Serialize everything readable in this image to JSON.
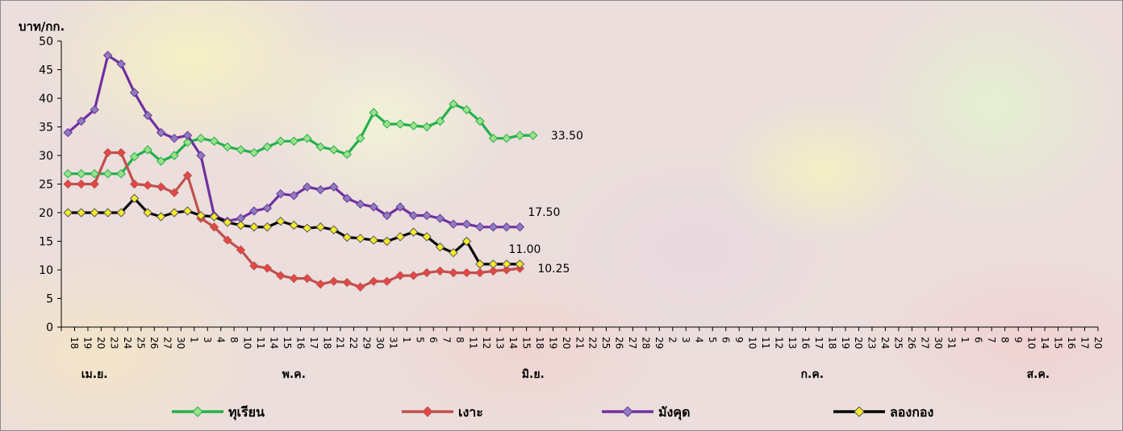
{
  "chart_data": {
    "type": "line",
    "ylabel": "บาท/กก.",
    "ylim": [
      0,
      50
    ],
    "yticks": [
      0,
      5,
      10,
      15,
      20,
      25,
      30,
      35,
      40,
      45,
      50
    ],
    "x_tick_labels": [
      "18",
      "19",
      "20",
      "23",
      "24",
      "25",
      "26",
      "27",
      "30",
      "1",
      "3",
      "4",
      "8",
      "10",
      "11",
      "14",
      "15",
      "16",
      "17",
      "18",
      "21",
      "22",
      "29",
      "30",
      "31",
      "1",
      "5",
      "6",
      "7",
      "8",
      "11",
      "12",
      "13",
      "14",
      "15",
      "18",
      "19",
      "20",
      "21",
      "22",
      "25",
      "26",
      "27",
      "28",
      "29",
      "2",
      "3",
      "4",
      "5",
      "6",
      "9",
      "10",
      "11",
      "12",
      "13",
      "16",
      "17",
      "18",
      "19",
      "20",
      "23",
      "24",
      "25",
      "26",
      "27",
      "30",
      "31",
      "1",
      "6",
      "7",
      "8",
      "9",
      "10",
      "14",
      "15",
      "16",
      "17",
      "20"
    ],
    "months": [
      {
        "label": "เม.ย.",
        "index": 2
      },
      {
        "label": "พ.ค.",
        "index": 17
      },
      {
        "label": "มิ.ย.",
        "index": 35
      },
      {
        "label": "ก.ค.",
        "index": 56
      },
      {
        "label": "ส.ค.",
        "index": 73
      }
    ],
    "grid": false,
    "legend_position": "bottom",
    "series": [
      {
        "name": "ทุเรียน",
        "color": "#22b04a",
        "marker_color": "#9be08a",
        "values": [
          26.8,
          26.8,
          26.8,
          26.8,
          26.8,
          29.8,
          31,
          29,
          30,
          32.3,
          33,
          32.5,
          31.5,
          31,
          30.5,
          31.5,
          32.5,
          32.5,
          33,
          31.5,
          31,
          30.2,
          33,
          37.5,
          35.5,
          35.5,
          35.2,
          35,
          36,
          39,
          38,
          36,
          33,
          33,
          33.5,
          33.5
        ],
        "end_label": "33.50"
      },
      {
        "name": "เงาะ",
        "color": "#c0504d",
        "marker_color": "#e04848",
        "values": [
          25,
          25,
          25,
          30.5,
          30.5,
          25,
          24.8,
          24.5,
          23.5,
          26.5,
          19,
          17.5,
          15.2,
          13.5,
          10.7,
          10.3,
          9,
          8.5,
          8.5,
          7.5,
          8,
          7.8,
          7,
          8,
          8,
          9,
          9,
          9.5,
          9.8,
          9.5,
          9.5,
          9.5,
          9.8,
          10,
          10.25
        ],
        "end_label": "10.25"
      },
      {
        "name": "มังคุด",
        "color": "#7030a0",
        "marker_color": "#8a7fbc",
        "values": [
          34,
          36,
          38,
          47.5,
          46,
          41,
          37,
          34,
          33,
          33.5,
          30,
          19.5,
          18.5,
          19,
          20.3,
          20.8,
          23.3,
          23,
          24.5,
          24,
          24.5,
          22.5,
          21.5,
          21,
          19.5,
          21,
          19.5,
          19.5,
          19,
          18,
          18,
          17.5,
          17.5,
          17.5,
          17.5
        ],
        "end_label": "17.50"
      },
      {
        "name": "ลองกอง",
        "color": "#000000",
        "marker_color": "#f5ea28",
        "values": [
          20,
          20,
          20,
          20,
          20,
          22.5,
          20,
          19.3,
          20,
          20.3,
          19.5,
          19.3,
          18.3,
          17.8,
          17.5,
          17.5,
          18.5,
          17.8,
          17.3,
          17.5,
          17,
          15.7,
          15.5,
          15.2,
          15,
          15.8,
          16.6,
          15.8,
          14,
          13,
          15,
          11,
          11,
          11,
          11
        ],
        "end_label": "11.00"
      }
    ]
  }
}
